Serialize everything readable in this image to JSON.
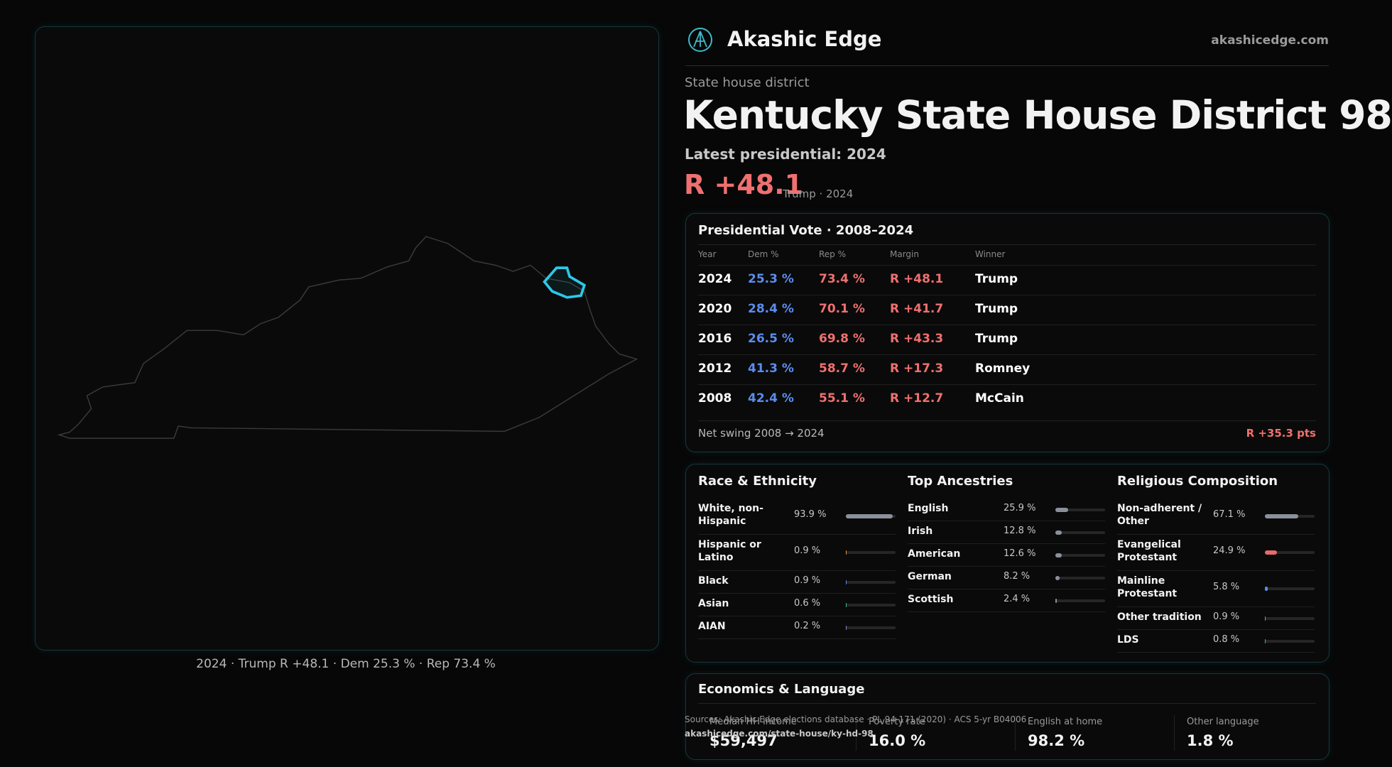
{
  "brand": {
    "name": "Akashic Edge",
    "url": "akashicedge.com"
  },
  "header": {
    "kicker": "State house district",
    "title": "Kentucky State House District 98",
    "latest": "Latest presidential: 2024",
    "margin": "R +48.1",
    "margin_note": "Trump · 2024"
  },
  "map": {
    "caption": "2024 · Trump R +48.1 · Dem 25.3 % · Rep 73.4 %"
  },
  "presidential": {
    "title": "Presidential Vote · 2008–2024",
    "columns": [
      "Year",
      "Dem %",
      "Rep %",
      "Margin",
      "Winner"
    ],
    "rows": [
      [
        "2024",
        "25.3 %",
        "73.4 %",
        "R +48.1",
        "Trump"
      ],
      [
        "2020",
        "28.4 %",
        "70.1 %",
        "R +41.7",
        "Trump"
      ],
      [
        "2016",
        "26.5 %",
        "69.8 %",
        "R +43.3",
        "Trump"
      ],
      [
        "2012",
        "41.3 %",
        "58.7 %",
        "R +17.3",
        "Romney"
      ],
      [
        "2008",
        "42.4 %",
        "55.1 %",
        "R +12.7",
        "McCain"
      ]
    ],
    "swing_label": "Net swing 2008 → 2024",
    "swing_value": "R +35.3 pts"
  },
  "demographics": [
    {
      "title": "Race & Ethnicity",
      "xlim": [
        0,
        100
      ],
      "rows": [
        {
          "label": "White, non-Hispanic",
          "value": 93.9,
          "value_label": "93.9 %",
          "color": "#8b919b"
        },
        {
          "label": "Hispanic or Latino",
          "value": 0.9,
          "value_label": "0.9 %",
          "color": "#e0923a"
        },
        {
          "label": "Black",
          "value": 0.9,
          "value_label": "0.9 %",
          "color": "#5b8def"
        },
        {
          "label": "Asian",
          "value": 0.6,
          "value_label": "0.6 %",
          "color": "#3fb8a8"
        },
        {
          "label": "AIAN",
          "value": 0.2,
          "value_label": "0.2 %",
          "color": "#9a7be0"
        }
      ]
    },
    {
      "title": "Top Ancestries",
      "xlim": [
        0,
        100
      ],
      "rows": [
        {
          "label": "English",
          "value": 25.9,
          "value_label": "25.9 %",
          "color": "#8b919b"
        },
        {
          "label": "Irish",
          "value": 12.8,
          "value_label": "12.8 %",
          "color": "#8b919b"
        },
        {
          "label": "American",
          "value": 12.6,
          "value_label": "12.6 %",
          "color": "#8b919b"
        },
        {
          "label": "German",
          "value": 8.2,
          "value_label": "8.2 %",
          "color": "#8b919b"
        },
        {
          "label": "Scottish",
          "value": 2.4,
          "value_label": "2.4 %",
          "color": "#8b919b"
        }
      ]
    },
    {
      "title": "Religious Composition",
      "xlim": [
        0,
        100
      ],
      "rows": [
        {
          "label": "Non-adherent / Other",
          "value": 67.1,
          "value_label": "67.1 %",
          "color": "#8b919b"
        },
        {
          "label": "Evangelical Protestant",
          "value": 24.9,
          "value_label": "24.9 %",
          "color": "#e86a6a"
        },
        {
          "label": "Mainline Protestant",
          "value": 5.8,
          "value_label": "5.8 %",
          "color": "#5b8def"
        },
        {
          "label": "Other tradition",
          "value": 0.9,
          "value_label": "0.9 %",
          "color": "#8b919b"
        },
        {
          "label": "LDS",
          "value": 0.8,
          "value_label": "0.8 %",
          "color": "#3fb8a8"
        }
      ]
    }
  ],
  "economics": {
    "title": "Economics & Language",
    "metrics": [
      {
        "label": "Median HH income",
        "value": "$59,497"
      },
      {
        "label": "Poverty rate",
        "value": "16.0 %"
      },
      {
        "label": "English at home",
        "value": "98.2 %"
      },
      {
        "label": "Other language",
        "value": "1.8 %"
      }
    ]
  },
  "sources": {
    "text": "Sources: Akashic Edge elections database · PL 94-171 (2020) · ACS 5-yr B04006",
    "url": "akashicedge.com/state-house/ky-hd-98"
  }
}
